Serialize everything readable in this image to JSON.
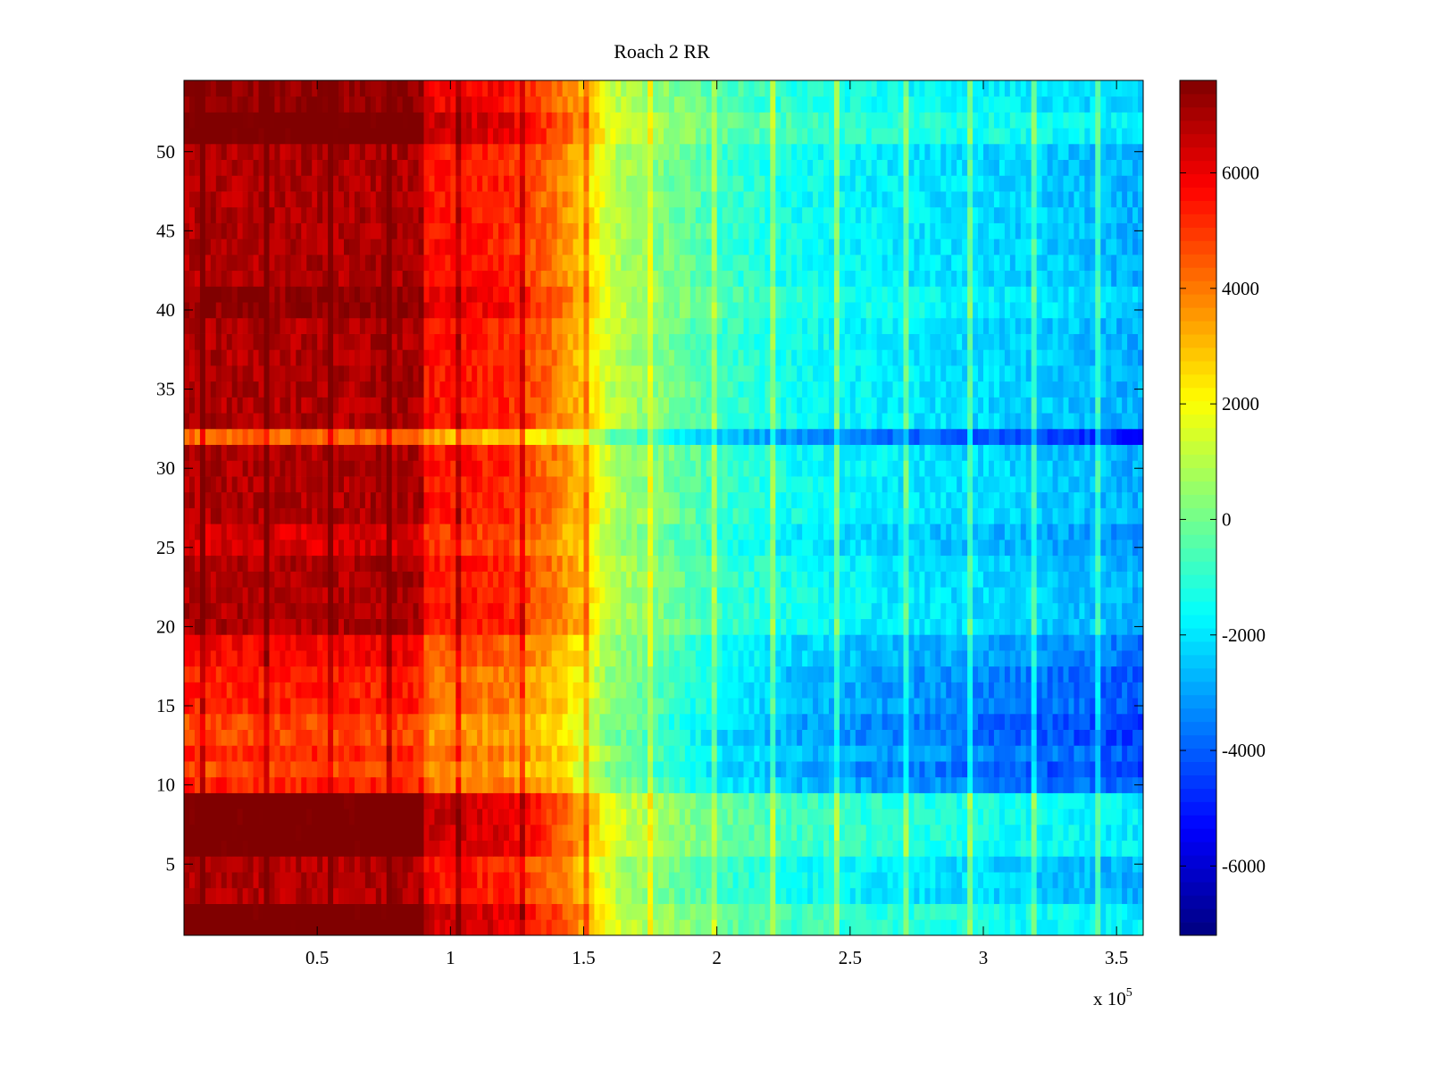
{
  "chart_data": {
    "type": "heatmap",
    "title": "Roach 2 RR",
    "xlabel": "",
    "ylabel": "",
    "x_multiplier_label": "x 10",
    "x_multiplier_exponent": "5",
    "xlim": [
      0,
      360000
    ],
    "ylim": [
      0.5,
      54.5
    ],
    "x_ticks": [
      50000,
      100000,
      150000,
      200000,
      250000,
      300000,
      350000
    ],
    "x_tick_labels": [
      "0.5",
      "1",
      "1.5",
      "2",
      "2.5",
      "3",
      "3.5"
    ],
    "y_ticks": [
      5,
      10,
      15,
      20,
      25,
      30,
      35,
      40,
      45,
      50
    ],
    "y_tick_labels": [
      "5",
      "10",
      "15",
      "20",
      "25",
      "30",
      "35",
      "40",
      "45",
      "50"
    ],
    "colorbar": {
      "colormap": "jet",
      "clim": [
        -7200,
        7600
      ],
      "ticks": [
        -6000,
        -4000,
        -2000,
        0,
        2000,
        4000,
        6000
      ],
      "tick_labels": [
        "-6000",
        "-4000",
        "-2000",
        "0",
        "2000",
        "4000",
        "6000"
      ]
    },
    "rows": 54,
    "row_offsets": [
      2600,
      2600,
      1300,
      1300,
      1300,
      2600,
      2600,
      2600,
      2600,
      -600,
      -1300,
      -600,
      -1300,
      -1300,
      -600,
      -600,
      -600,
      0,
      0,
      1300,
      1300,
      1300,
      1300,
      1300,
      600,
      600,
      1300,
      1300,
      1300,
      1300,
      1300,
      -1900,
      1300,
      1300,
      1300,
      1300,
      1300,
      1300,
      1300,
      1900,
      1900,
      1300,
      1300,
      1300,
      1300,
      1300,
      1300,
      1300,
      1300,
      1300,
      2600,
      2600,
      1900,
      1900
    ],
    "column_profile": {
      "x": [
        0,
        30000,
        60000,
        90000,
        90001,
        120000,
        140000,
        150000,
        160000,
        200000,
        230000,
        260000,
        300000,
        330000,
        360000
      ],
      "value": [
        5800,
        5800,
        5800,
        5900,
        4600,
        4400,
        3200,
        2200,
        600,
        -1400,
        -2200,
        -2600,
        -3000,
        -3300,
        -3700
      ]
    }
  }
}
